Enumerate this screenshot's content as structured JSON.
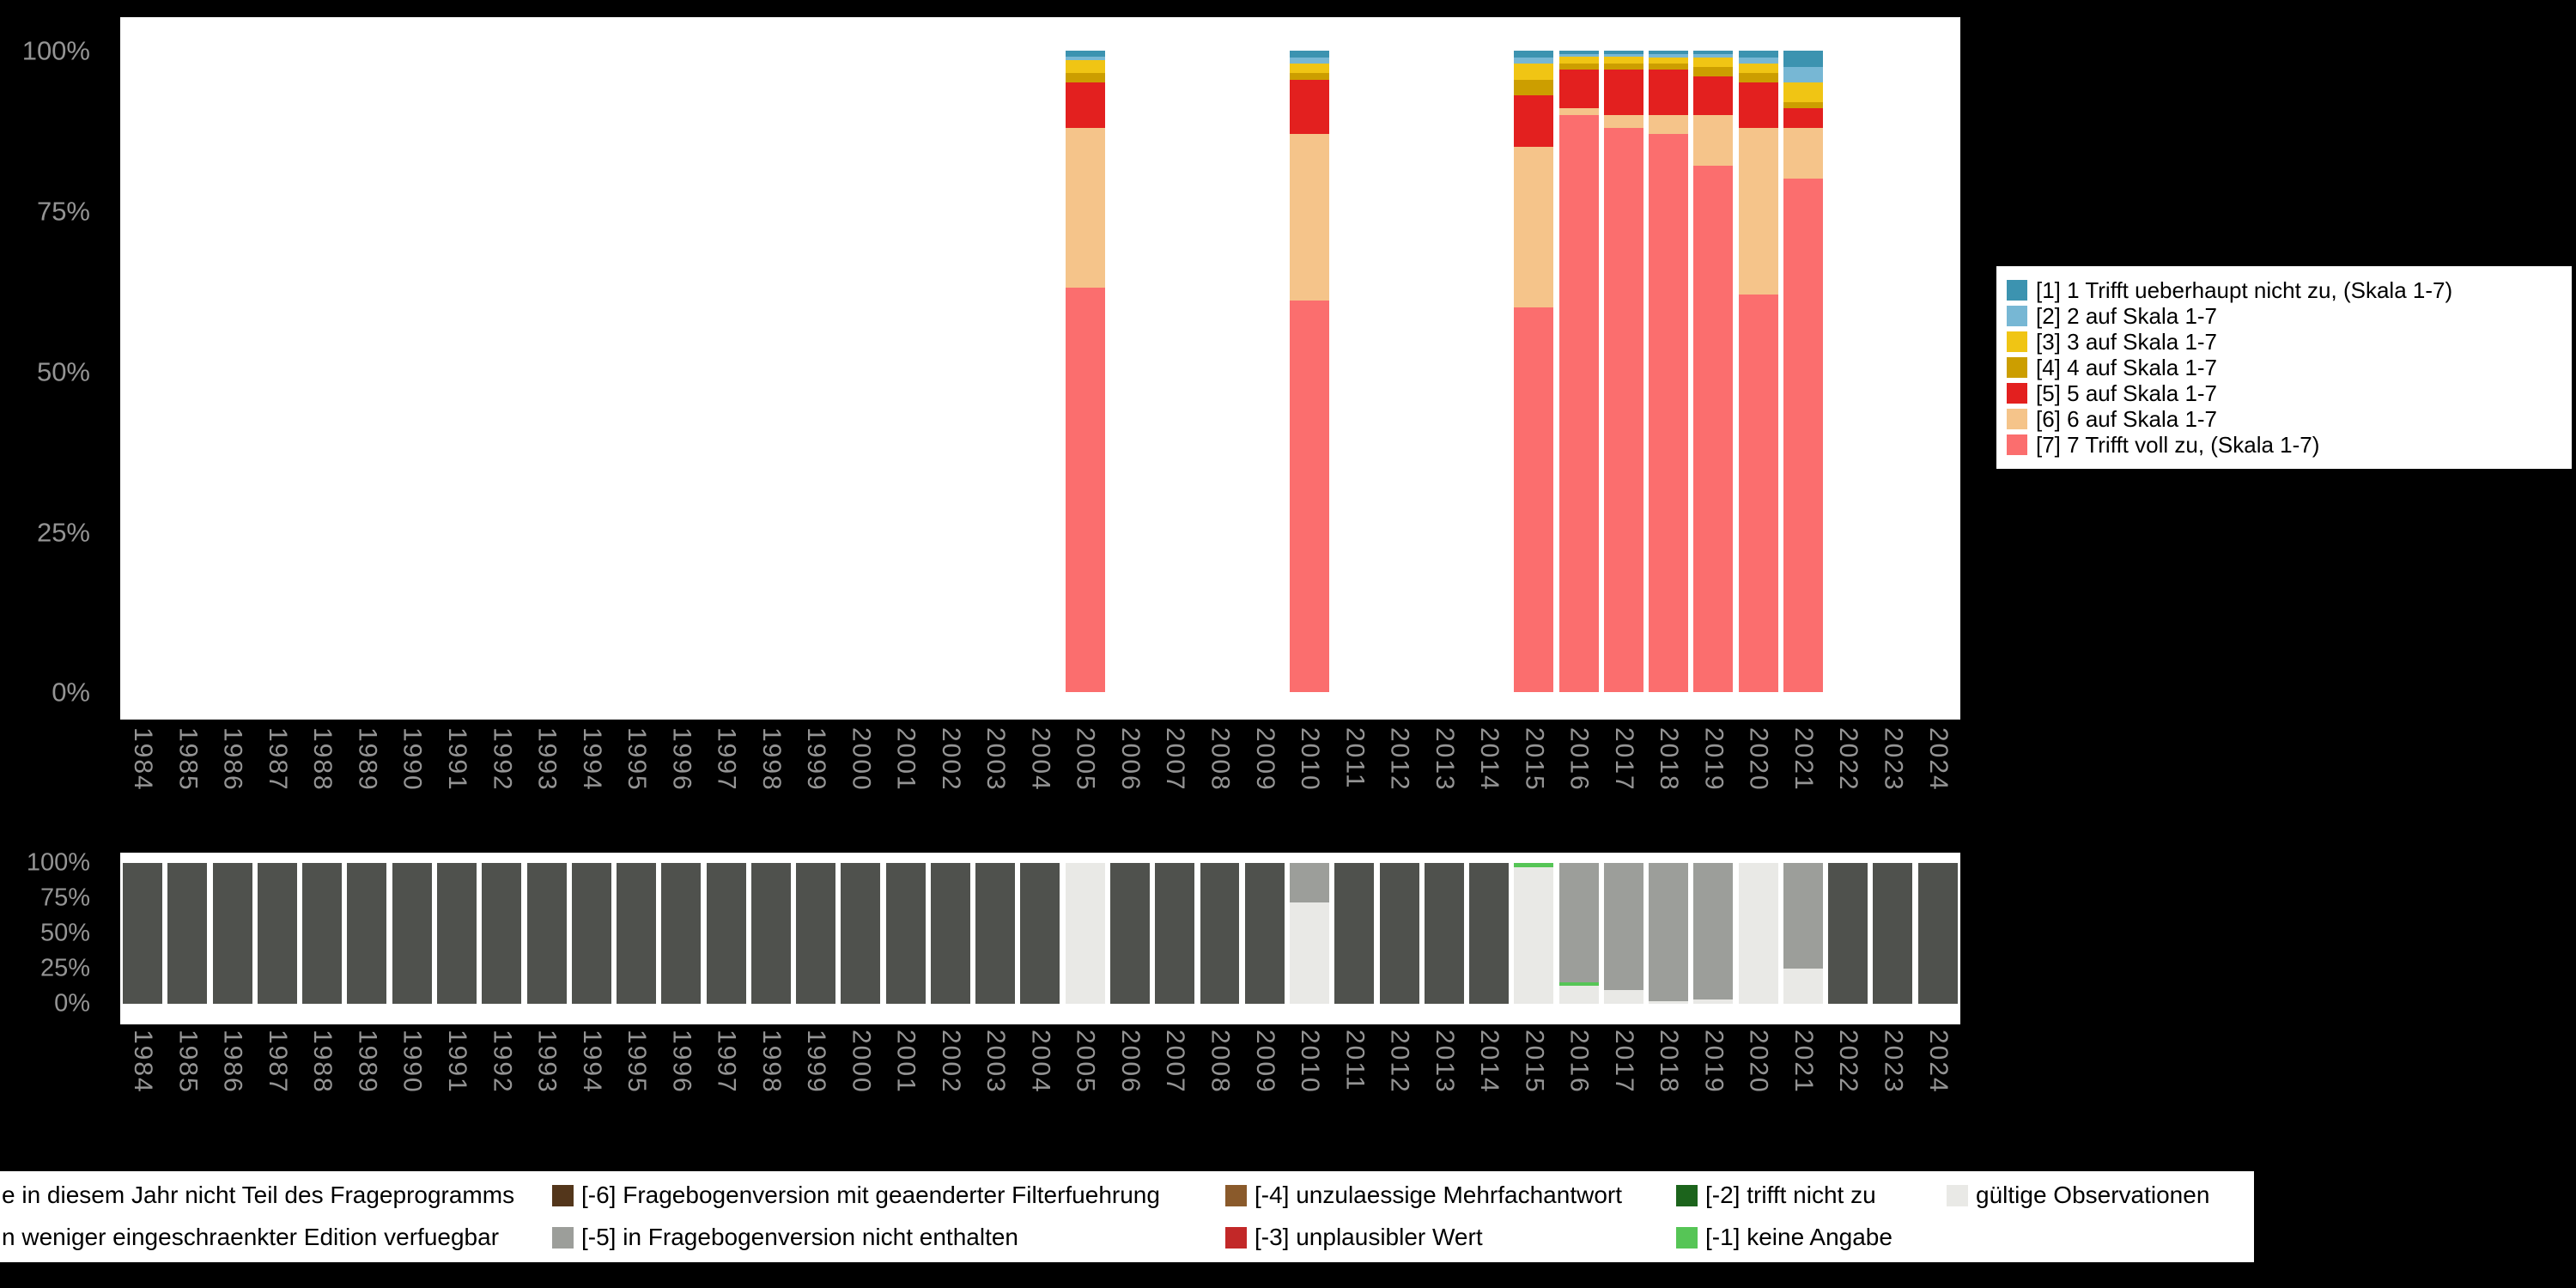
{
  "figure": {
    "background": "#000000",
    "panel_background": "#FFFFFF",
    "axis_text_color": "#949494"
  },
  "axis": {
    "y_ticks": [
      "100%",
      "75%",
      "50%",
      "25%",
      "0%"
    ]
  },
  "years": [
    "1984",
    "1985",
    "1986",
    "1987",
    "1988",
    "1989",
    "1990",
    "1991",
    "1992",
    "1993",
    "1994",
    "1995",
    "1996",
    "1997",
    "1998",
    "1999",
    "2000",
    "2001",
    "2002",
    "2003",
    "2004",
    "2005",
    "2006",
    "2007",
    "2008",
    "2009",
    "2010",
    "2011",
    "2012",
    "2013",
    "2014",
    "2015",
    "2016",
    "2017",
    "2018",
    "2019",
    "2020",
    "2021",
    "2022",
    "2023",
    "2024"
  ],
  "chart_data": [
    {
      "id": "answers",
      "type": "bar",
      "stacked": true,
      "unit": "percent",
      "ylim": [
        0,
        100
      ],
      "x": "years",
      "y_ticks": [
        "100%",
        "75%",
        "50%",
        "25%",
        "0%"
      ],
      "legend_position": "right",
      "series_bottom_to_top": [
        {
          "id": "s7",
          "label": "[7] 7 Trifft voll zu, (Skala 1-7)",
          "color": "#FB6E6E",
          "values_by_year": {
            "2005": 63,
            "2010": 61,
            "2015": 60,
            "2016": 90,
            "2017": 88,
            "2018": 87,
            "2019": 82,
            "2020": 62,
            "2021": 80
          }
        },
        {
          "id": "s6",
          "label": "[6] 6 auf Skala 1-7",
          "color": "#F5C48A",
          "values_by_year": {
            "2005": 25,
            "2010": 26,
            "2015": 25,
            "2016": 1,
            "2017": 2,
            "2018": 3,
            "2019": 8,
            "2020": 26,
            "2021": 8
          }
        },
        {
          "id": "s5",
          "label": "[5] 5 auf Skala 1-7",
          "color": "#E3201F",
          "values_by_year": {
            "2005": 7,
            "2010": 8.5,
            "2015": 8,
            "2016": 6,
            "2017": 7,
            "2018": 7,
            "2019": 6,
            "2020": 7,
            "2021": 3
          }
        },
        {
          "id": "s4",
          "label": "[4] 4 auf Skala 1-7",
          "color": "#CC9E00",
          "values_by_year": {
            "2005": 1.5,
            "2010": 1,
            "2015": 2.5,
            "2016": 1,
            "2017": 1,
            "2018": 1,
            "2019": 1.5,
            "2020": 1.5,
            "2021": 1
          }
        },
        {
          "id": "s3",
          "label": "[3] 3 auf Skala 1-7",
          "color": "#F0C514",
          "values_by_year": {
            "2005": 2,
            "2010": 1.5,
            "2015": 2.5,
            "2016": 1,
            "2017": 1,
            "2018": 1,
            "2019": 1.5,
            "2020": 1.5,
            "2021": 3
          }
        },
        {
          "id": "s2",
          "label": "[2] 2 auf Skala 1-7",
          "color": "#77B7D4",
          "values_by_year": {
            "2005": 0.5,
            "2010": 1,
            "2015": 1,
            "2016": 0.5,
            "2017": 0.5,
            "2018": 0.5,
            "2019": 0.5,
            "2020": 1,
            "2021": 2.5
          }
        },
        {
          "id": "s1",
          "label": "[1] 1 Trifft ueberhaupt nicht zu, (Skala 1-7)",
          "color": "#3C93B0",
          "values_by_year": {
            "2005": 1,
            "2010": 1,
            "2015": 1,
            "2016": 0.5,
            "2017": 0.5,
            "2018": 0.5,
            "2019": 0.5,
            "2020": 1,
            "2021": 2.5
          }
        }
      ]
    },
    {
      "id": "missings",
      "type": "bar",
      "stacked": true,
      "unit": "percent",
      "ylim": [
        0,
        100
      ],
      "x": "years",
      "y_ticks": [
        "100%",
        "75%",
        "50%",
        "25%",
        "0%"
      ],
      "legend_position": "bottom",
      "series_bottom_to_top": [
        {
          "id": "valid",
          "label": "gültige Observationen",
          "color": "#E9E9E6",
          "values_by_year": {
            "2005": 100,
            "2010": 72,
            "2015": 97,
            "2016": 13,
            "2017": 10,
            "2018": 2,
            "2019": 3,
            "2020": 100,
            "2021": 25
          }
        },
        {
          "id": "m1",
          "label": "[-1] keine Angabe",
          "color": "#56C556",
          "values_by_year": {
            "2015": 3,
            "2016": 2
          }
        },
        {
          "id": "m2",
          "label": "[-2] trifft nicht zu",
          "color": "#1C641C",
          "values_by_year": {}
        },
        {
          "id": "m3",
          "label": "[-3] unplausibler Wert",
          "color": "#C22828",
          "values_by_year": {}
        },
        {
          "id": "m4",
          "label": "[-4] unzulaessige Mehrfachantwort",
          "color": "#8A5A2B",
          "values_by_year": {}
        },
        {
          "id": "m5",
          "label": "[-5] in Fragebogenversion nicht enthalten",
          "color": "#9C9E9A",
          "values_by_year": {
            "2010": 28,
            "2016": 85,
            "2017": 90,
            "2018": 98,
            "2019": 97,
            "2021": 75
          }
        },
        {
          "id": "m6",
          "label": "[-6] Fragebogenversion mit geaenderter Filterfuehrung",
          "color": "#53361B",
          "values_by_year": {}
        },
        {
          "id": "edition",
          "label": "n weniger eingeschraenkter Edition verfuegbar",
          "color": "#ADADAB",
          "values_by_year": {}
        },
        {
          "id": "notpart",
          "label": "e in diesem Jahr nicht Teil des Frageprogramms",
          "color": "#4F514D",
          "values_by_year": {
            "default": 100,
            "2005": 0,
            "2010": 0,
            "2015": 0,
            "2016": 0,
            "2017": 0,
            "2018": 0,
            "2019": 0,
            "2020": 0,
            "2021": 0
          }
        }
      ]
    }
  ],
  "scale_legend": {
    "items": [
      {
        "label": "[1] 1 Trifft ueberhaupt nicht zu, (Skala 1-7)",
        "color": "#3C93B0"
      },
      {
        "label": "[2] 2 auf Skala 1-7",
        "color": "#77B7D4"
      },
      {
        "label": "[3] 3 auf Skala 1-7",
        "color": "#F0C514"
      },
      {
        "label": "[4] 4 auf Skala 1-7",
        "color": "#CC9E00"
      },
      {
        "label": "[5] 5 auf Skala 1-7",
        "color": "#E3201F"
      },
      {
        "label": "[6] 6 auf Skala 1-7",
        "color": "#F5C48A"
      },
      {
        "label": "[7] 7 Trifft voll zu, (Skala 1-7)",
        "color": "#FB6E6E"
      }
    ]
  },
  "missing_legend": {
    "cells": [
      {
        "row": 0,
        "col": 0,
        "label": "e in diesem Jahr nicht Teil des Frageprogramms",
        "color": "#4F514D",
        "key_offscreen": true
      },
      {
        "row": 1,
        "col": 0,
        "label": "n weniger eingeschraenkter Edition verfuegbar",
        "color": "#ADADAB",
        "key_offscreen": true
      },
      {
        "row": 0,
        "col": 1,
        "label": "[-6] Fragebogenversion mit geaenderter Filterfuehrung",
        "color": "#53361B"
      },
      {
        "row": 1,
        "col": 1,
        "label": "[-5] in Fragebogenversion nicht enthalten",
        "color": "#9C9E9A"
      },
      {
        "row": 0,
        "col": 2,
        "label": "[-4] unzulaessige Mehrfachantwort",
        "color": "#8A5A2B"
      },
      {
        "row": 1,
        "col": 2,
        "label": "[-3] unplausibler Wert",
        "color": "#C22828"
      },
      {
        "row": 0,
        "col": 3,
        "label": "[-2] trifft nicht zu",
        "color": "#1C641C"
      },
      {
        "row": 1,
        "col": 3,
        "label": "[-1] keine Angabe",
        "color": "#56C556"
      },
      {
        "row": 0,
        "col": 4,
        "label": "gültige Observationen",
        "color": "#E9E9E6"
      }
    ]
  }
}
